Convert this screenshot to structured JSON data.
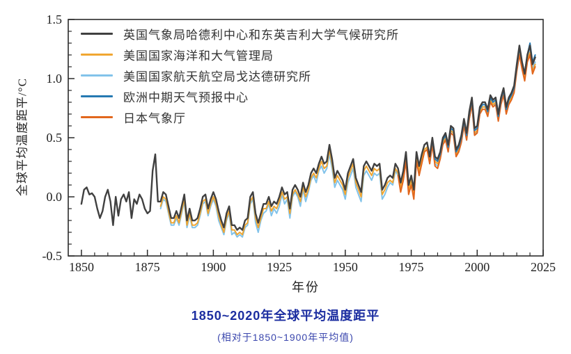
{
  "figure": {
    "title": "1850~2020年全球平均温度距平",
    "subtitle": "(相对于1850~1900年平均值)",
    "title_color": "#1b2da0",
    "subtitle_color": "#3a46ad",
    "background_color": "#ffffff"
  },
  "chart_data": {
    "type": "line",
    "title": "1850~2020年全球平均温度距平",
    "subtitle": "(相对于1850~1900年平均值)",
    "xlabel": "年份",
    "ylabel": "全球平均温度距平/°C",
    "xlim": [
      1845,
      2025
    ],
    "ylim": [
      -0.5,
      1.5
    ],
    "x_major_ticks": [
      1850,
      1875,
      1900,
      1925,
      1950,
      1975,
      2000,
      2025
    ],
    "x_minor_step": 5,
    "y_major_ticks": [
      -0.5,
      0.0,
      0.5,
      1.0,
      1.5
    ],
    "y_minor_step": 0.1,
    "grid": false,
    "legend_position": "top-left-inside",
    "axis_color": "#2b2b2b",
    "tick_label_color": "#222222",
    "series": [
      {
        "name": "hadcrut-uk",
        "label": "英国气象局哈德利中心和东英吉利大学气候研究所",
        "color": "#404040",
        "width": 2.4,
        "start_year": 1850,
        "values": [
          -0.06,
          0.06,
          0.08,
          0.02,
          0.03,
          0.0,
          -0.1,
          -0.18,
          -0.12,
          0.0,
          0.06,
          -0.04,
          -0.24,
          0.0,
          -0.16,
          -0.02,
          0.02,
          -0.04,
          0.04,
          -0.18,
          -0.02,
          -0.06,
          0.02,
          -0.02,
          -0.1,
          -0.14,
          -0.12,
          0.22,
          0.36,
          -0.04,
          -0.04,
          0.04,
          0.02,
          -0.08,
          -0.18,
          -0.18,
          -0.12,
          -0.18,
          -0.08,
          0.02,
          -0.2,
          -0.1,
          -0.2,
          -0.2,
          -0.18,
          -0.1,
          0.0,
          0.02,
          -0.1,
          -0.02,
          0.04,
          -0.02,
          -0.12,
          -0.2,
          -0.26,
          -0.14,
          -0.08,
          -0.24,
          -0.24,
          -0.28,
          -0.26,
          -0.28,
          -0.2,
          -0.18,
          0.0,
          0.04,
          -0.14,
          -0.22,
          -0.14,
          -0.06,
          -0.06,
          0.0,
          -0.08,
          -0.04,
          -0.06,
          0.0,
          0.08,
          0.02,
          0.04,
          -0.1,
          0.06,
          0.1,
          0.06,
          0.0,
          0.12,
          0.04,
          0.1,
          0.2,
          0.24,
          0.2,
          0.28,
          0.34,
          0.28,
          0.3,
          0.44,
          0.32,
          0.16,
          0.22,
          0.18,
          0.14,
          0.06,
          0.2,
          0.26,
          0.32,
          0.16,
          0.1,
          0.04,
          0.26,
          0.3,
          0.26,
          0.22,
          0.28,
          0.26,
          0.28,
          0.06,
          0.1,
          0.16,
          0.18,
          0.16,
          0.28,
          0.24,
          0.12,
          0.22,
          0.38,
          0.1,
          0.18,
          0.06,
          0.38,
          0.26,
          0.36,
          0.44,
          0.46,
          0.34,
          0.5,
          0.34,
          0.32,
          0.38,
          0.5,
          0.54,
          0.44,
          0.6,
          0.58,
          0.4,
          0.44,
          0.52,
          0.66,
          0.54,
          0.72,
          0.84,
          0.58,
          0.6,
          0.76,
          0.8,
          0.8,
          0.74,
          0.86,
          0.82,
          0.84,
          0.7,
          0.84,
          0.92,
          0.76,
          0.84,
          0.88,
          0.94,
          1.12,
          1.28,
          1.14,
          1.04,
          1.2,
          1.28,
          1.12,
          1.18
        ]
      },
      {
        "name": "noaa",
        "label": "美国国家海洋和大气管理局",
        "color": "#f0a632",
        "width": 2,
        "start_year": 1880,
        "values": [
          -0.08,
          0.0,
          -0.02,
          -0.12,
          -0.22,
          -0.22,
          -0.16,
          -0.22,
          -0.12,
          -0.02,
          -0.24,
          -0.14,
          -0.24,
          -0.24,
          -0.22,
          -0.14,
          -0.04,
          -0.02,
          -0.14,
          -0.06,
          0.0,
          -0.06,
          -0.16,
          -0.24,
          -0.3,
          -0.18,
          -0.12,
          -0.28,
          -0.28,
          -0.32,
          -0.3,
          -0.32,
          -0.24,
          -0.22,
          -0.04,
          0.0,
          -0.18,
          -0.26,
          -0.18,
          -0.1,
          -0.1,
          -0.04,
          -0.12,
          -0.08,
          -0.1,
          -0.04,
          0.04,
          -0.02,
          0.0,
          -0.14,
          0.02,
          0.06,
          0.02,
          -0.04,
          0.08,
          0.0,
          0.06,
          0.16,
          0.2,
          0.16,
          0.24,
          0.3,
          0.24,
          0.26,
          0.4,
          0.28,
          0.12,
          0.18,
          0.14,
          0.1,
          0.02,
          0.16,
          0.22,
          0.28,
          0.12,
          0.06,
          0.0,
          0.22,
          0.26,
          0.22,
          0.18,
          0.24,
          0.22,
          0.24,
          0.02,
          0.06,
          0.12,
          0.14,
          0.12,
          0.24,
          0.2,
          0.08,
          0.18,
          0.34,
          0.06,
          0.14,
          0.02,
          0.34,
          0.22,
          0.32,
          0.4,
          0.42,
          0.3,
          0.46,
          0.3,
          0.28,
          0.34,
          0.46,
          0.5,
          0.4,
          0.56,
          0.54,
          0.36,
          0.4,
          0.48,
          0.62,
          0.5,
          0.68,
          0.8,
          0.54,
          0.56,
          0.72,
          0.76,
          0.76,
          0.7,
          0.82,
          0.78,
          0.8,
          0.66,
          0.8,
          0.88,
          0.72,
          0.8,
          0.84,
          0.9,
          1.08,
          1.22,
          1.1,
          1.0,
          1.16,
          1.22,
          1.06,
          1.12
        ]
      },
      {
        "name": "nasa-giss",
        "label": "美国国家航天航空局戈达德研究所",
        "color": "#82c3ea",
        "width": 2,
        "start_year": 1880,
        "values": [
          -0.1,
          -0.02,
          -0.04,
          -0.14,
          -0.24,
          -0.24,
          -0.18,
          -0.24,
          -0.14,
          -0.04,
          -0.26,
          -0.16,
          -0.26,
          -0.26,
          -0.24,
          -0.16,
          -0.06,
          -0.04,
          -0.16,
          -0.08,
          -0.02,
          -0.08,
          -0.2,
          -0.26,
          -0.32,
          -0.2,
          -0.14,
          -0.32,
          -0.3,
          -0.34,
          -0.32,
          -0.34,
          -0.26,
          -0.24,
          -0.06,
          -0.02,
          -0.22,
          -0.3,
          -0.2,
          -0.14,
          -0.12,
          -0.06,
          -0.16,
          -0.1,
          -0.14,
          -0.08,
          0.02,
          -0.06,
          -0.02,
          -0.18,
          0.0,
          0.04,
          0.0,
          -0.08,
          0.06,
          -0.04,
          0.04,
          0.14,
          0.18,
          0.12,
          0.22,
          0.26,
          0.2,
          0.24,
          0.36,
          0.24,
          0.08,
          0.14,
          0.1,
          0.06,
          -0.02,
          0.12,
          0.18,
          0.24,
          0.08,
          0.02,
          -0.04,
          0.18,
          0.22,
          0.18,
          0.14,
          0.2,
          0.18,
          0.2,
          -0.02,
          0.02,
          0.08,
          0.12,
          0.1,
          0.22,
          0.18,
          0.06,
          0.16,
          0.3,
          0.04,
          0.12,
          0.0,
          0.32,
          0.2,
          0.3,
          0.4,
          0.42,
          0.28,
          0.44,
          0.28,
          0.26,
          0.32,
          0.46,
          0.5,
          0.38,
          0.56,
          0.54,
          0.36,
          0.38,
          0.46,
          0.6,
          0.48,
          0.66,
          0.78,
          0.52,
          0.56,
          0.7,
          0.76,
          0.76,
          0.68,
          0.82,
          0.78,
          0.78,
          0.66,
          0.8,
          0.88,
          0.72,
          0.8,
          0.84,
          0.92,
          1.1,
          1.26,
          1.12,
          1.02,
          1.18,
          1.26,
          1.08,
          1.14
        ]
      },
      {
        "name": "ecmwf",
        "label": "欧洲中期天气预报中心",
        "color": "#2679b2",
        "width": 2,
        "start_year": 1979,
        "values": [
          0.36,
          0.44,
          0.46,
          0.34,
          0.48,
          0.32,
          0.3,
          0.36,
          0.48,
          0.52,
          0.42,
          0.58,
          0.56,
          0.38,
          0.42,
          0.5,
          0.64,
          0.52,
          0.7,
          0.82,
          0.56,
          0.58,
          0.74,
          0.78,
          0.78,
          0.72,
          0.84,
          0.8,
          0.82,
          0.68,
          0.82,
          0.9,
          0.74,
          0.82,
          0.86,
          0.92,
          1.1,
          1.26,
          1.14,
          1.04,
          1.2,
          1.3,
          1.14,
          1.2
        ]
      },
      {
        "name": "jma",
        "label": "日本气象厅",
        "color": "#e2671d",
        "width": 2,
        "start_year": 1970,
        "values": [
          0.18,
          0.04,
          0.14,
          0.3,
          0.02,
          0.1,
          -0.02,
          0.3,
          0.18,
          0.28,
          0.38,
          0.4,
          0.28,
          0.44,
          0.26,
          0.24,
          0.32,
          0.44,
          0.48,
          0.38,
          0.54,
          0.52,
          0.34,
          0.38,
          0.46,
          0.6,
          0.48,
          0.66,
          0.78,
          0.52,
          0.54,
          0.7,
          0.74,
          0.74,
          0.68,
          0.8,
          0.76,
          0.78,
          0.64,
          0.78,
          0.86,
          0.7,
          0.78,
          0.82,
          0.88,
          1.06,
          1.2,
          1.08,
          0.98,
          1.14,
          1.2,
          1.04,
          1.1
        ]
      }
    ]
  }
}
